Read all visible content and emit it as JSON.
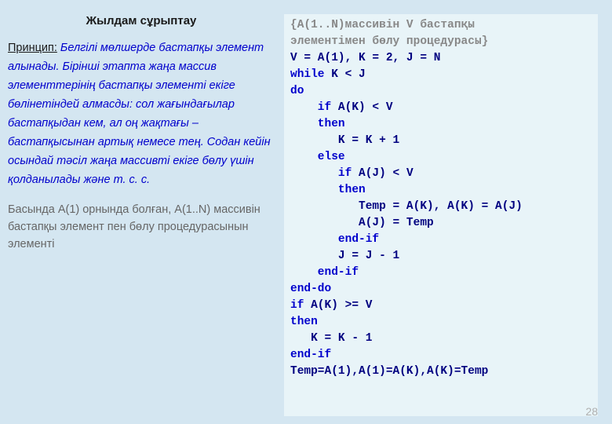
{
  "colors": {
    "page_bg": "#d4e6f1",
    "code_bg": "#e8f4f8",
    "title_color": "#1a1a1a",
    "principle_color": "#0000cc",
    "note_color": "#666666",
    "comment_color": "#888888",
    "code_color": "#000080",
    "keyword_color": "#0000cc",
    "page_num_color": "#b0b0b0"
  },
  "title": "Жылдам сұрыптау",
  "principle_label": "Принцип:",
  "principle_text": " Белгілі мөлшерде бастапқы элемент алынады. Бірінші этапта жаңа массив элементтерінің бастапқы элементі екіге бөлінетіндей алмасды: сол жағындағылар бастапқыдан кем, ал оң жақтағы –  бастапқысынан артық немесе тең. Содан кейін осындай тәсіл жаңа массивті екіге бөлу үшін қолданылады және т. с. с.",
  "note_text": "Басында А(1) орнында болған, А(1..N) массивін бастапқы элемент пен бөлу процедурасынын элементі",
  "comment_line1": "{A(1..N)массивін V бастапқы",
  "comment_line2": "элементімен бөлу процедурасы}",
  "code": {
    "l1": "V = A(1), K = 2, J = N",
    "kw_while": "while",
    "l2_rest": " K < J",
    "kw_do": "do",
    "kw_if1": "    if",
    "l4_rest": " A(K) < V",
    "kw_then1": "    then",
    "l6": "       K = K + 1",
    "kw_else": "    else",
    "kw_if2": "       if",
    "l8_rest": " A(J) < V",
    "kw_then2": "       then",
    "l10": "          Temp = A(K), A(K) = A(J)",
    "l11": "          A(J) = Temp",
    "kw_endif1": "       end-if",
    "l13": "       J = J - 1",
    "kw_endif2": "    end-if",
    "kw_enddo": "end-do",
    "kw_if3": "if",
    "l16_rest": " A(K) >= V",
    "kw_then3": "then",
    "l18": "   K = K - 1",
    "kw_endif3": "end-if",
    "l20": "Temp=A(1),A(1)=A(K),A(K)=Temp"
  },
  "page_number": "28"
}
